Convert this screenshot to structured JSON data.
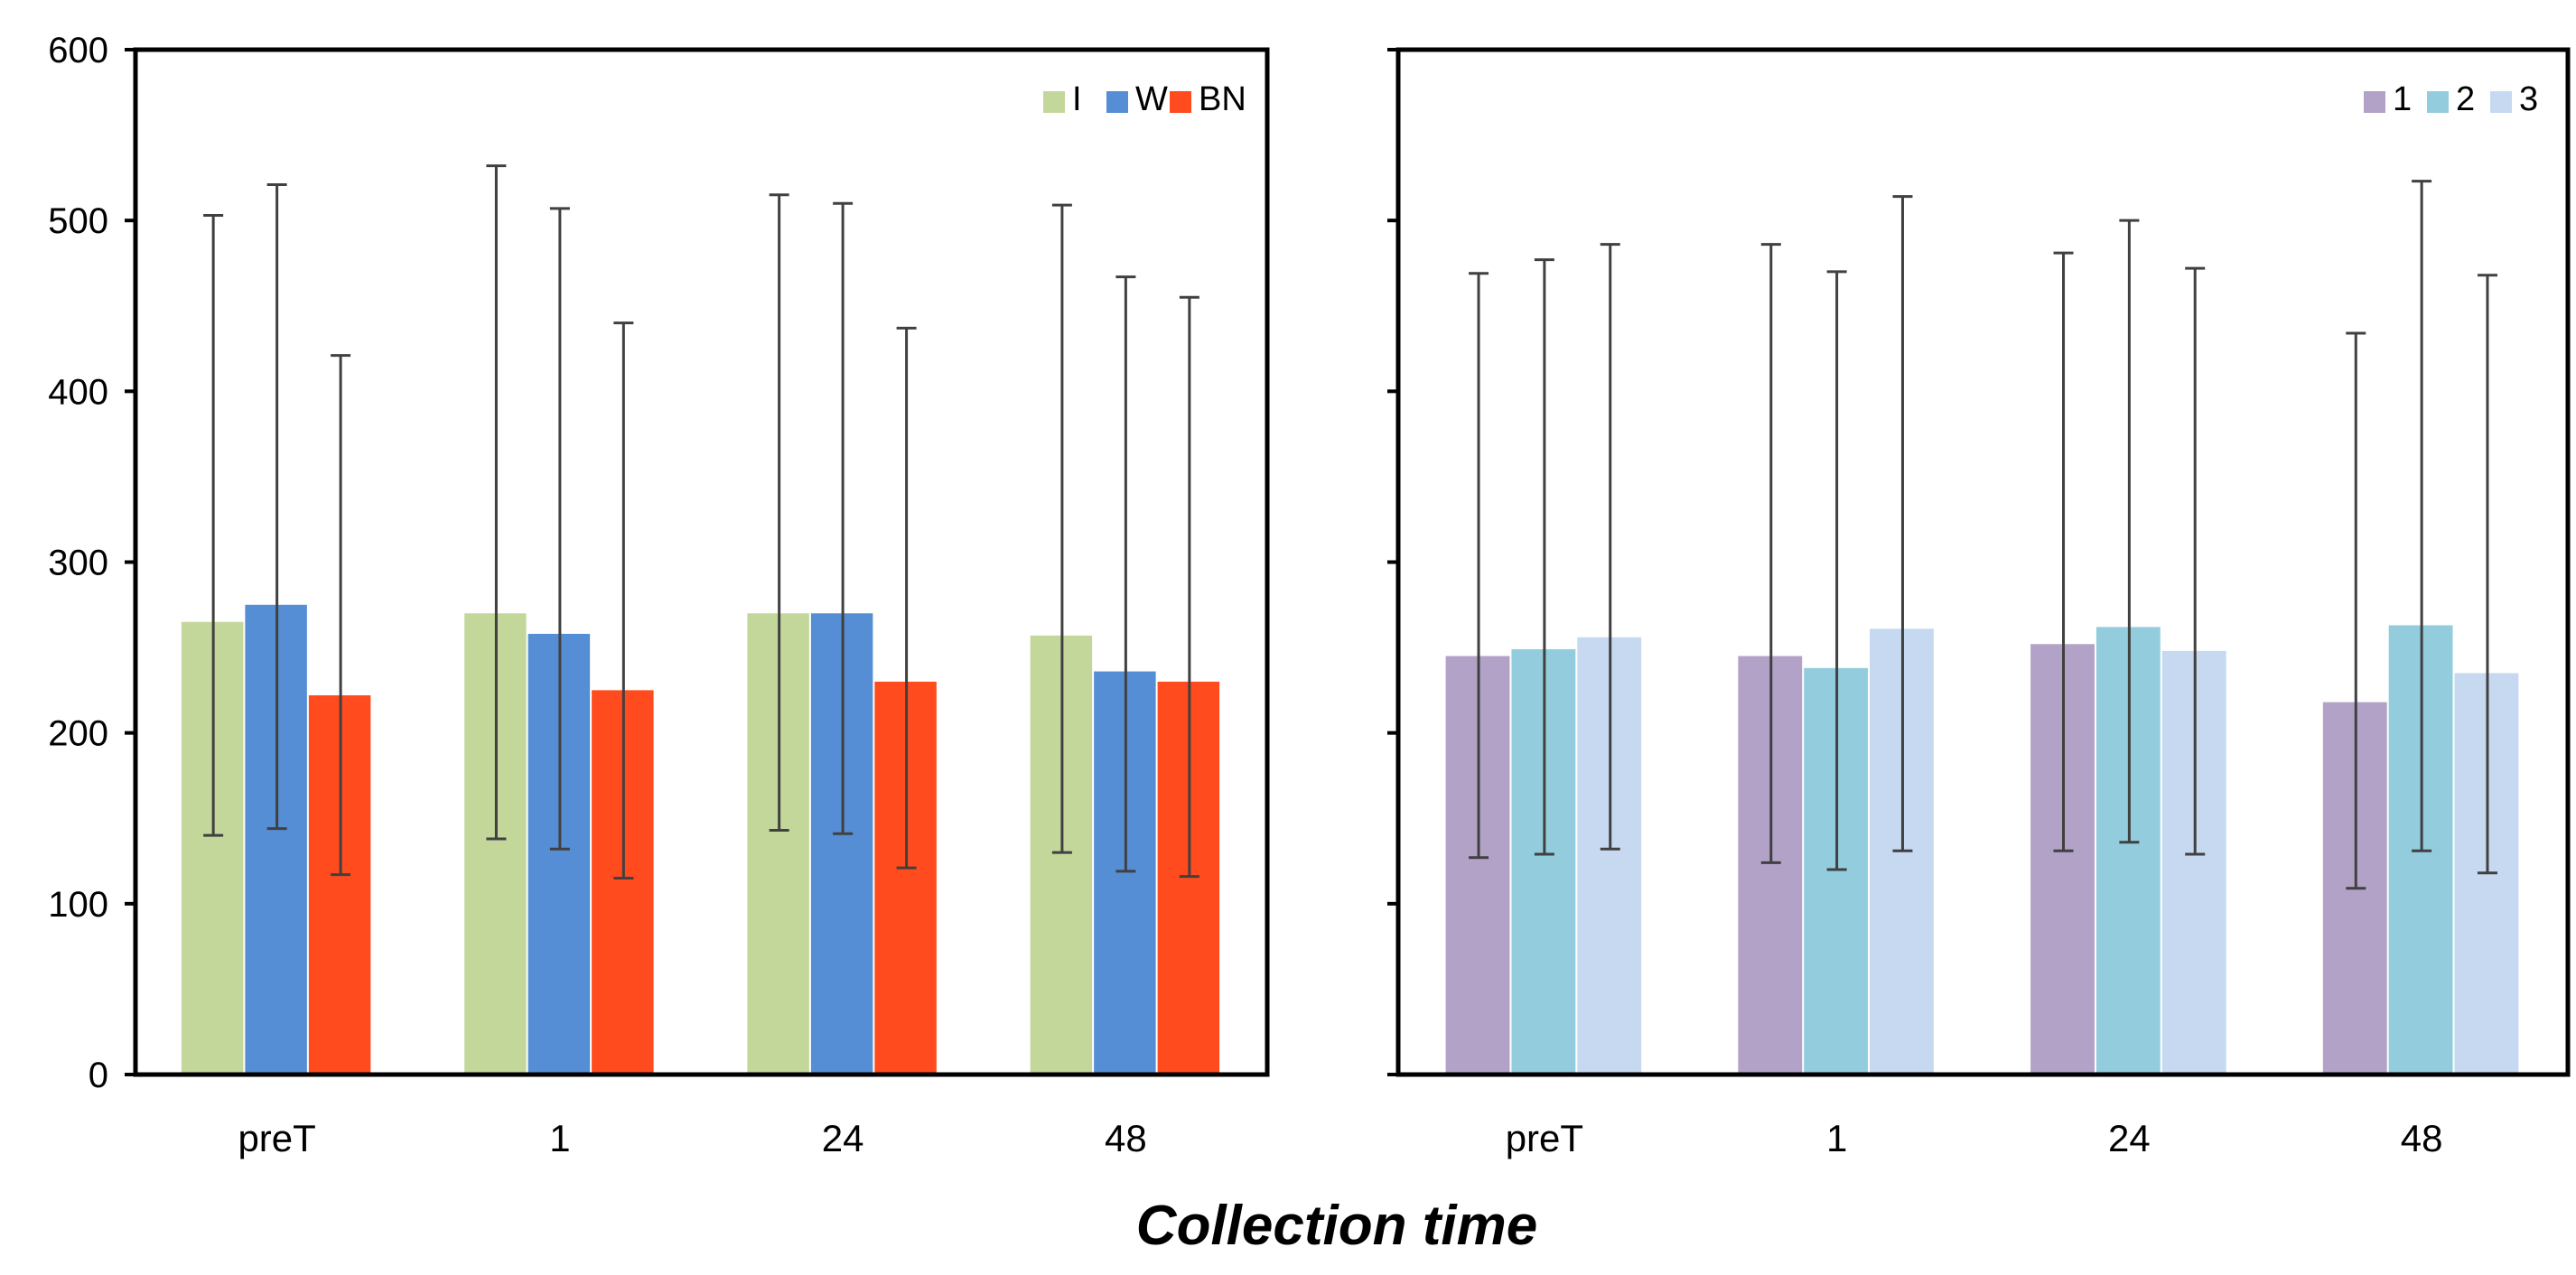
{
  "chart_data": [
    {
      "type": "bar",
      "categories": [
        "preT",
        "1",
        "24",
        "48"
      ],
      "ylim": [
        0,
        600
      ],
      "yticks": [
        0,
        100,
        200,
        300,
        400,
        500,
        600
      ],
      "legend_position": "top-right",
      "grid": false,
      "series": [
        {
          "name": "I",
          "color": "#c4d79b",
          "values": [
            265,
            270,
            270,
            257
          ],
          "err_low": [
            140,
            138,
            143,
            130
          ],
          "err_high": [
            503,
            532,
            515,
            509
          ]
        },
        {
          "name": "W",
          "color": "#558ed5",
          "values": [
            275,
            258,
            270,
            236
          ],
          "err_low": [
            144,
            132,
            141,
            119
          ],
          "err_high": [
            521,
            507,
            510,
            467
          ]
        },
        {
          "name": "BN",
          "color": "#ff4b1e",
          "values": [
            222,
            225,
            230,
            230
          ],
          "err_low": [
            117,
            115,
            121,
            116
          ],
          "err_high": [
            421,
            440,
            437,
            455
          ]
        }
      ]
    },
    {
      "type": "bar",
      "categories": [
        "preT",
        "1",
        "24",
        "48"
      ],
      "ylim": [
        0,
        600
      ],
      "yticks": [
        0,
        100,
        200,
        300,
        400,
        500,
        600
      ],
      "show_tick_labels": false,
      "legend_position": "top-right",
      "grid": false,
      "series": [
        {
          "name": "1",
          "color": "#b3a2c7",
          "values": [
            245,
            245,
            252,
            218
          ],
          "err_low": [
            127,
            124,
            131,
            109
          ],
          "err_high": [
            469,
            486,
            481,
            434
          ]
        },
        {
          "name": "2",
          "color": "#93cddd",
          "values": [
            249,
            238,
            262,
            263
          ],
          "err_low": [
            129,
            120,
            136,
            131
          ],
          "err_high": [
            477,
            470,
            500,
            523
          ]
        },
        {
          "name": "3",
          "color": "#c6d9f1",
          "values": [
            256,
            261,
            248,
            235
          ],
          "err_low": [
            132,
            131,
            129,
            118
          ],
          "err_high": [
            486,
            514,
            472,
            468
          ]
        }
      ]
    }
  ],
  "xlabel": "Collection time",
  "error_bar_color": "#404040"
}
